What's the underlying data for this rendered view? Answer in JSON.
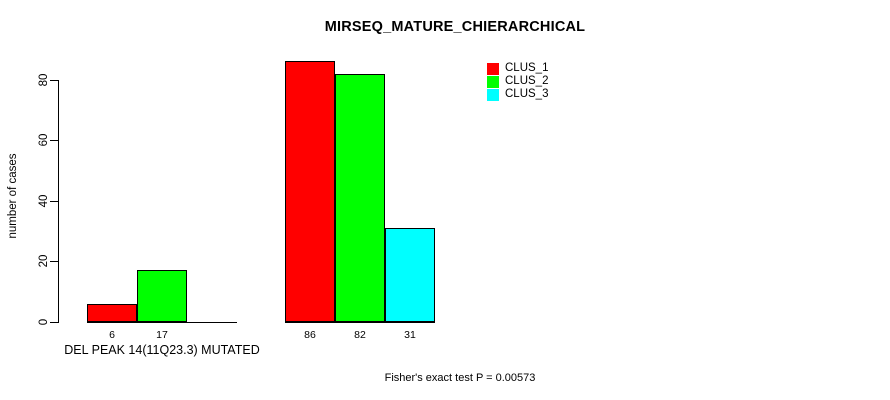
{
  "chart_data": {
    "type": "bar",
    "title": "MIRSEQ_MATURE_CHIERARCHICAL",
    "ylabel": "number of cases",
    "xlabel": "",
    "footnote": "Fisher's exact test P = 0.00573",
    "ylim": [
      0,
      80
    ],
    "yticks": [
      0,
      20,
      40,
      60,
      80
    ],
    "grid": false,
    "legend_position": "top-right",
    "categories": [
      "DEL PEAK 14(11Q23.3) MUTATED",
      ""
    ],
    "series": [
      {
        "name": "CLUS_1",
        "color": "#FF0000",
        "values": [
          6,
          86
        ]
      },
      {
        "name": "CLUS_2",
        "color": "#00FF00",
        "values": [
          17,
          82
        ]
      },
      {
        "name": "CLUS_3",
        "color": "#00FFFF",
        "values": [
          0,
          31
        ]
      }
    ],
    "bar_value_labels": [
      [
        "6",
        "17"
      ],
      [
        "86",
        "82",
        "31"
      ]
    ],
    "background_color": "#FFFFFF",
    "axis_color": "#000000"
  }
}
